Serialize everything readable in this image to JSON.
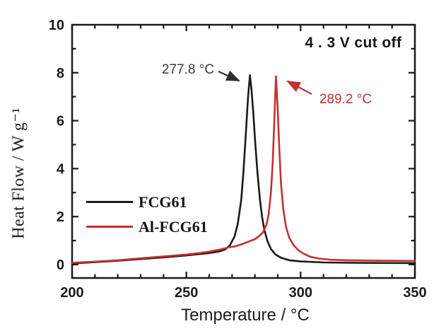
{
  "chart_data": {
    "type": "line",
    "title": "",
    "xlabel": "Temperature / °C",
    "ylabel": "Heat Flow / W g⁻¹",
    "xlim": [
      200,
      350
    ],
    "ylim": [
      -0.56,
      10
    ],
    "x_major_ticks": [
      200,
      250,
      300,
      350
    ],
    "x_minor_step": 10,
    "y_major_ticks": [
      0,
      2,
      4,
      6,
      8,
      10
    ],
    "y_minor_ticks": [
      1,
      3,
      5,
      7,
      9
    ],
    "grid": false,
    "legend_position": "middle-left",
    "axis_color": "#1a1a1a",
    "annotations": {
      "cutoff": "4 . 3 V cut off"
    },
    "series": [
      {
        "name": "FCG61",
        "color": "#1a1a1a",
        "peak_label": "277.8 °C",
        "peak_temperature_c": 277.8,
        "peak_heat_flow": 7.9,
        "x": [
          200,
          210,
          220,
          230,
          240,
          250,
          256,
          260,
          264,
          267,
          269,
          271,
          272.5,
          274,
          275,
          276,
          277,
          277.8,
          278.5,
          279.3,
          280.2,
          281.2,
          282.2,
          283.2,
          284.2,
          285.5,
          287,
          289,
          291.5,
          295,
          300,
          310,
          325,
          350
        ],
        "y": [
          0.05,
          0.1,
          0.16,
          0.23,
          0.3,
          0.38,
          0.44,
          0.48,
          0.54,
          0.63,
          0.8,
          1.15,
          1.7,
          2.7,
          3.9,
          5.4,
          7.0,
          7.9,
          7.3,
          6.3,
          5.0,
          3.75,
          2.7,
          1.95,
          1.42,
          0.98,
          0.65,
          0.42,
          0.28,
          0.18,
          0.13,
          0.09,
          0.07,
          0.06
        ]
      },
      {
        "name": "Al-FCG61",
        "color": "#c1322f",
        "peak_label": "289.2 °C",
        "peak_temperature_c": 289.2,
        "peak_heat_flow": 7.85,
        "x": [
          200,
          210,
          220,
          230,
          240,
          250,
          256,
          260,
          264,
          267,
          269,
          271,
          274,
          277,
          280,
          282,
          283.5,
          285,
          286,
          287,
          287.8,
          288.5,
          289.2,
          289.9,
          290.6,
          291.4,
          292.4,
          293.6,
          295,
          296.8,
          299,
          301,
          304,
          308,
          313,
          320,
          335,
          350
        ],
        "y": [
          0.07,
          0.12,
          0.18,
          0.26,
          0.34,
          0.42,
          0.48,
          0.54,
          0.61,
          0.68,
          0.73,
          0.75,
          0.84,
          0.95,
          1.06,
          1.2,
          1.34,
          1.65,
          2.1,
          3.0,
          4.3,
          6.0,
          7.85,
          6.6,
          5.0,
          3.4,
          2.3,
          1.58,
          1.12,
          0.82,
          0.6,
          0.47,
          0.33,
          0.25,
          0.2,
          0.18,
          0.16,
          0.15
        ]
      }
    ]
  }
}
